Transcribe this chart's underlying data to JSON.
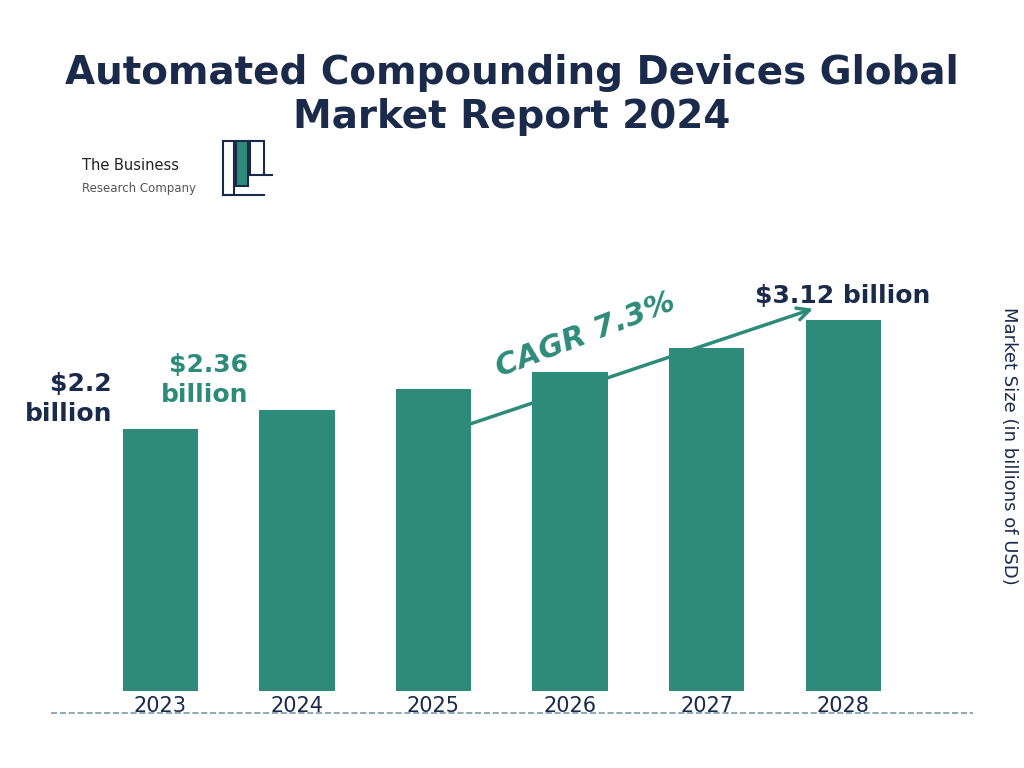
{
  "title": "Automated Compounding Devices Global\nMarket Report 2024",
  "ylabel": "Market Size (in billions of USD)",
  "categories": [
    "2023",
    "2024",
    "2025",
    "2026",
    "2027",
    "2028"
  ],
  "values": [
    2.2,
    2.36,
    2.54,
    2.68,
    2.88,
    3.12
  ],
  "bar_color": "#2e8b7a",
  "background_color": "#ffffff",
  "title_color": "#1a2a4a",
  "label_2023": "$2.2\nbillion",
  "label_2024": "$2.36\nbillion",
  "label_2028": "$3.12 billion",
  "cagr_text_1": "CAGR",
  "cagr_text_2": " 7.3%",
  "cagr_color": "#2e8b7a",
  "cagr_dark_color": "#1a2a4a",
  "title_fontsize": 28,
  "axis_fontsize": 13,
  "tick_fontsize": 15,
  "annot_fontsize": 18,
  "cagr_fontsize": 22,
  "bottom_line_color": "#7a9aaa",
  "logo_bar_color": "#2e8b7a",
  "logo_outline_color": "#1a2a4a",
  "ylim_max": 4.0
}
